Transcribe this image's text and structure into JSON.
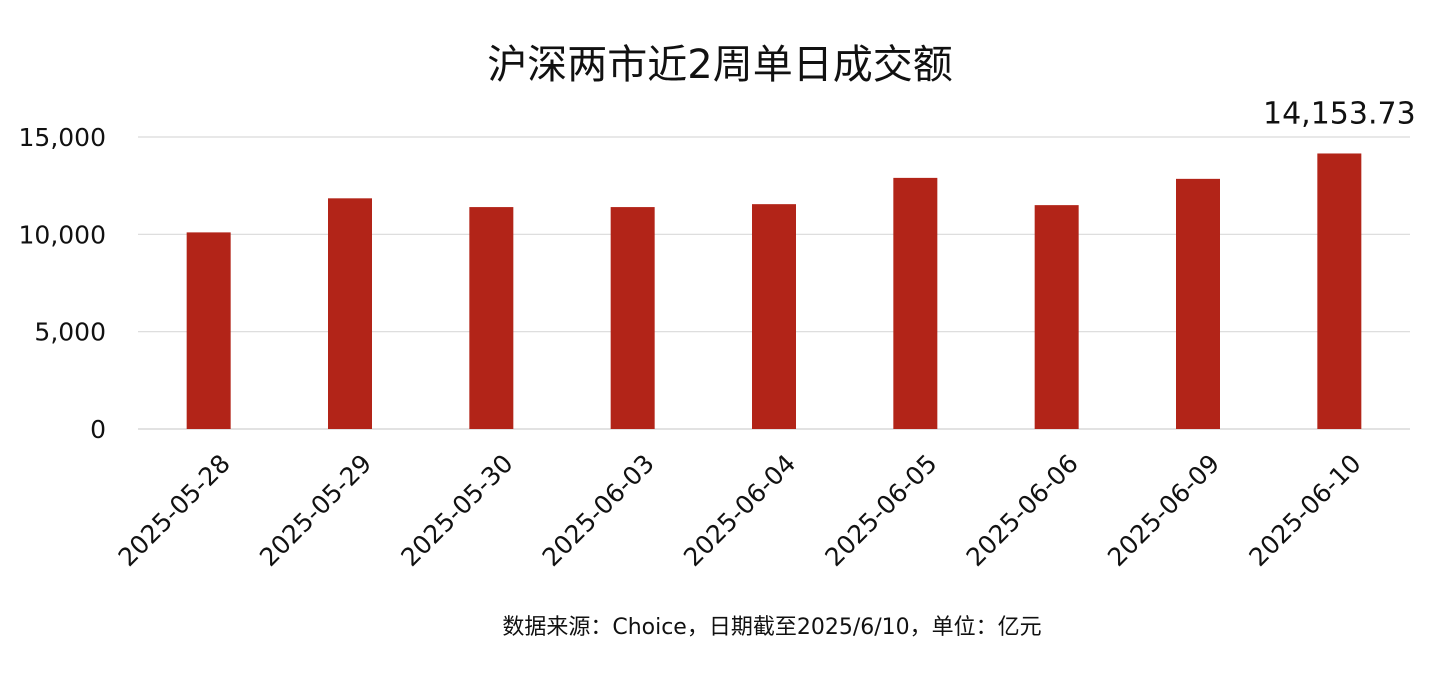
{
  "chart_data": {
    "type": "bar",
    "title": "沪深两市近2周单日成交额",
    "categories": [
      "2025-05-28",
      "2025-05-29",
      "2025-05-30",
      "2025-06-03",
      "2025-06-04",
      "2025-06-05",
      "2025-06-06",
      "2025-06-09",
      "2025-06-10"
    ],
    "series": [
      {
        "values": [
          10100,
          11850,
          11400,
          11400,
          11550,
          12900,
          11500,
          12850,
          14153.73
        ]
      }
    ],
    "ylim": [
      0,
      15000
    ],
    "yticks": [
      "0",
      "5,000",
      "10,000",
      "15,000"
    ],
    "ytick_values": [
      0,
      5000,
      10000,
      15000
    ],
    "data_labels": [
      {
        "category": "2025-06-10",
        "text": "14,153.73"
      }
    ],
    "grid": true,
    "legend": "none",
    "bar_color": "#B22418",
    "gridline_color": "#D9D9D9",
    "note": "数据来源：Choice，日期截至2025/6/10，单位：亿元"
  }
}
